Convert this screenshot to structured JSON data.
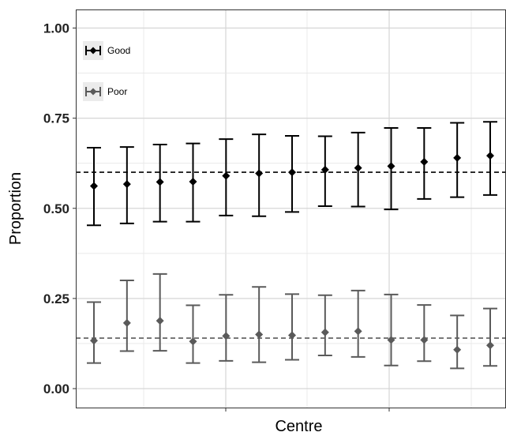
{
  "chart_data": {
    "type": "scatter",
    "title": "",
    "xlabel": "Centre",
    "ylabel": "Proportion",
    "ylim": [
      -0.05,
      1.05
    ],
    "yticks": [
      0.0,
      0.25,
      0.5,
      0.75,
      1.0
    ],
    "ytick_labels": [
      "0.00",
      "0.25",
      "0.50",
      "0.75",
      "1.00"
    ],
    "grid": true,
    "legend_position": "top-left",
    "error_bars": true,
    "reference_lines": [
      {
        "series": "Good",
        "y": 0.6,
        "style": "dashed"
      },
      {
        "series": "Poor",
        "y": 0.14,
        "style": "dashed"
      }
    ],
    "series": [
      {
        "name": "Good",
        "color": "#000000",
        "values": [
          0.562,
          0.567,
          0.573,
          0.574,
          0.59,
          0.597,
          0.6,
          0.607,
          0.612,
          0.617,
          0.629,
          0.64,
          0.646
        ],
        "lower": [
          0.453,
          0.458,
          0.463,
          0.463,
          0.48,
          0.478,
          0.49,
          0.506,
          0.505,
          0.497,
          0.526,
          0.531,
          0.537
        ],
        "upper": [
          0.668,
          0.67,
          0.677,
          0.68,
          0.692,
          0.705,
          0.701,
          0.7,
          0.71,
          0.723,
          0.723,
          0.737,
          0.74
        ]
      },
      {
        "name": "Poor",
        "color": "#5a5a5a",
        "values": [
          0.133,
          0.182,
          0.188,
          0.131,
          0.146,
          0.15,
          0.148,
          0.156,
          0.159,
          0.135,
          0.135,
          0.108,
          0.12
        ],
        "lower": [
          0.071,
          0.104,
          0.105,
          0.071,
          0.077,
          0.073,
          0.08,
          0.092,
          0.088,
          0.064,
          0.076,
          0.056,
          0.063
        ],
        "upper": [
          0.24,
          0.3,
          0.318,
          0.231,
          0.26,
          0.282,
          0.262,
          0.259,
          0.272,
          0.261,
          0.232,
          0.203,
          0.222
        ]
      }
    ]
  }
}
